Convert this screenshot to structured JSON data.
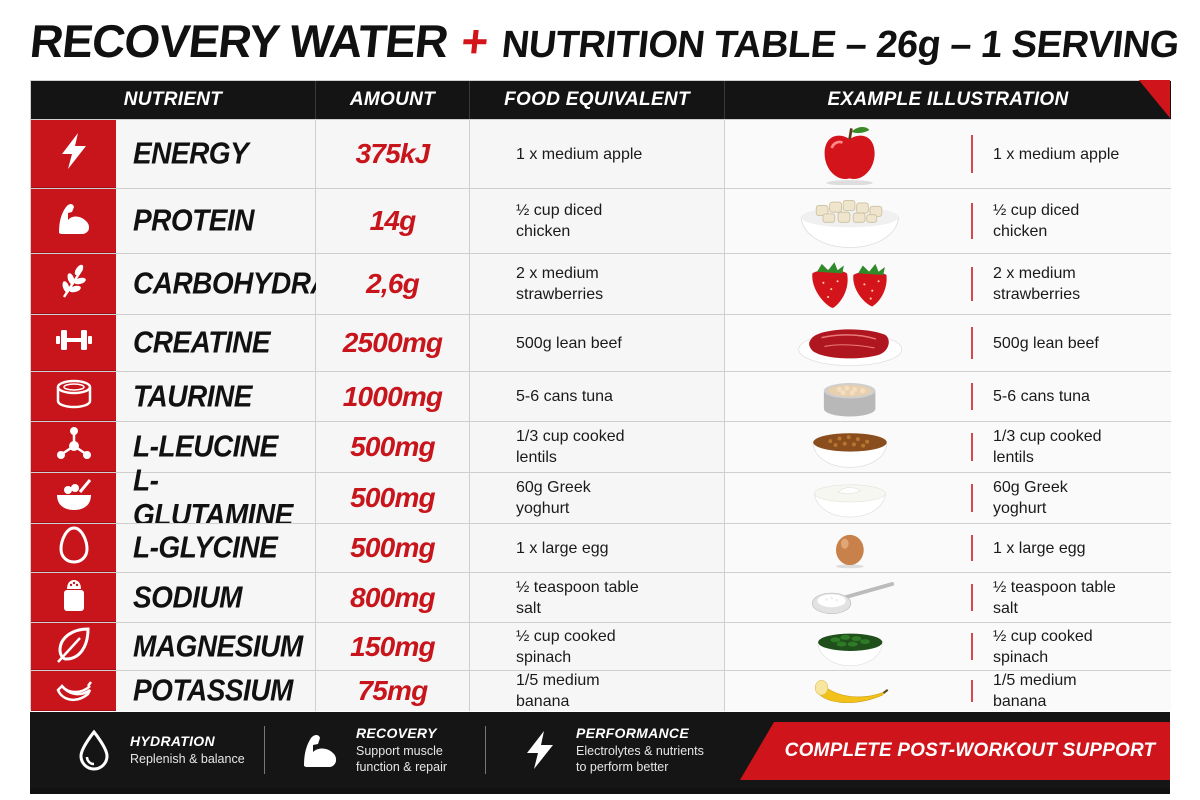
{
  "title": {
    "main": "RECOVERY WATER",
    "plus": "+",
    "sub": "NUTRITION TABLE – 26g – 1 SERVING"
  },
  "headers": {
    "nutrient": "NUTRIENT",
    "amount": "AMOUNT",
    "food": "FOOD EQUIVALENT",
    "illustration": "EXAMPLE ILLUSTRATION"
  },
  "colors": {
    "accent": "#c8141b",
    "dark": "#141414",
    "rowbg": "#f6f6f6"
  },
  "rows": [
    {
      "icon": "lightning-icon",
      "name": "ENERGY",
      "amount": "375kJ",
      "food": "1 x medium apple",
      "picture": "apple"
    },
    {
      "icon": "flexed-arm-icon",
      "name": "PROTEIN",
      "amount": "14g",
      "food": "½ cup diced chicken",
      "picture": "diced-chicken-bowl"
    },
    {
      "icon": "wheat-icon",
      "name": "CARBOHYDRATES",
      "amount": "2,6g",
      "food": "2 x medium strawberries",
      "picture": "strawberries"
    },
    {
      "icon": "dumbbell-icon",
      "name": "CREATINE",
      "amount": "2500mg",
      "food": "500g lean beef",
      "picture": "raw-beef-plate"
    },
    {
      "icon": "can-icon",
      "name": "TAURINE",
      "amount": "1000mg",
      "food": "5-6 cans tuna",
      "picture": "tuna-can"
    },
    {
      "icon": "molecule-icon",
      "name": "L-LEUCINE",
      "amount": "500mg",
      "food": "1/3 cup cooked lentils",
      "picture": "lentils-bowl"
    },
    {
      "icon": "bowl-icon",
      "name": "L-GLUTAMINE",
      "amount": "500mg",
      "food": "60g Greek yoghurt",
      "picture": "yoghurt-bowl"
    },
    {
      "icon": "egg-icon",
      "name": "L-GLYCINE",
      "amount": "500mg",
      "food": "1 x large egg",
      "picture": "egg"
    },
    {
      "icon": "salt-shaker-icon",
      "name": "SODIUM",
      "amount": "800mg",
      "food": "½ teaspoon table salt",
      "picture": "salt-spoon"
    },
    {
      "icon": "leaf-icon",
      "name": "MAGNESIUM",
      "amount": "150mg",
      "food": "½ cup cooked spinach",
      "picture": "spinach-bowl"
    },
    {
      "icon": "banana-icon",
      "name": "POTASSIUM",
      "amount": "75mg",
      "food": "1/5 medium banana",
      "picture": "banana"
    }
  ],
  "footer": {
    "items": [
      {
        "icon": "water-drop-icon",
        "title": "HYDRATION",
        "desc": "Replenish & balance"
      },
      {
        "icon": "flexed-arm-icon",
        "title": "RECOVERY",
        "desc": "Support muscle function & repair"
      },
      {
        "icon": "lightning-icon",
        "title": "PERFORMANCE",
        "desc": "Electrolytes & nutrients to perform better"
      }
    ],
    "cta": "COMPLETE POST-WORKOUT SUPPORT"
  }
}
